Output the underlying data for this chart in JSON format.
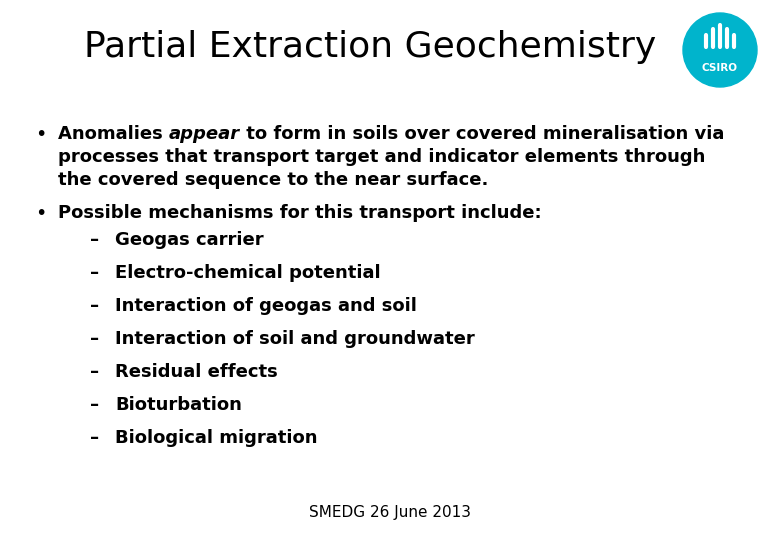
{
  "title": "Partial Extraction Geochemistry",
  "title_fontsize": 26,
  "background_color": "#ffffff",
  "text_color": "#000000",
  "footer": "SMEDG 26 June 2013",
  "footer_fontsize": 11,
  "bullet_fontsize": 13,
  "logo_color": "#00b4cc",
  "sub_items": [
    "Geogas carrier",
    "Electro-chemical potential",
    "Interaction of geogas and soil",
    "Interaction of soil and groundwater",
    "Residual effects",
    "Bioturbation",
    "Biological migration"
  ]
}
